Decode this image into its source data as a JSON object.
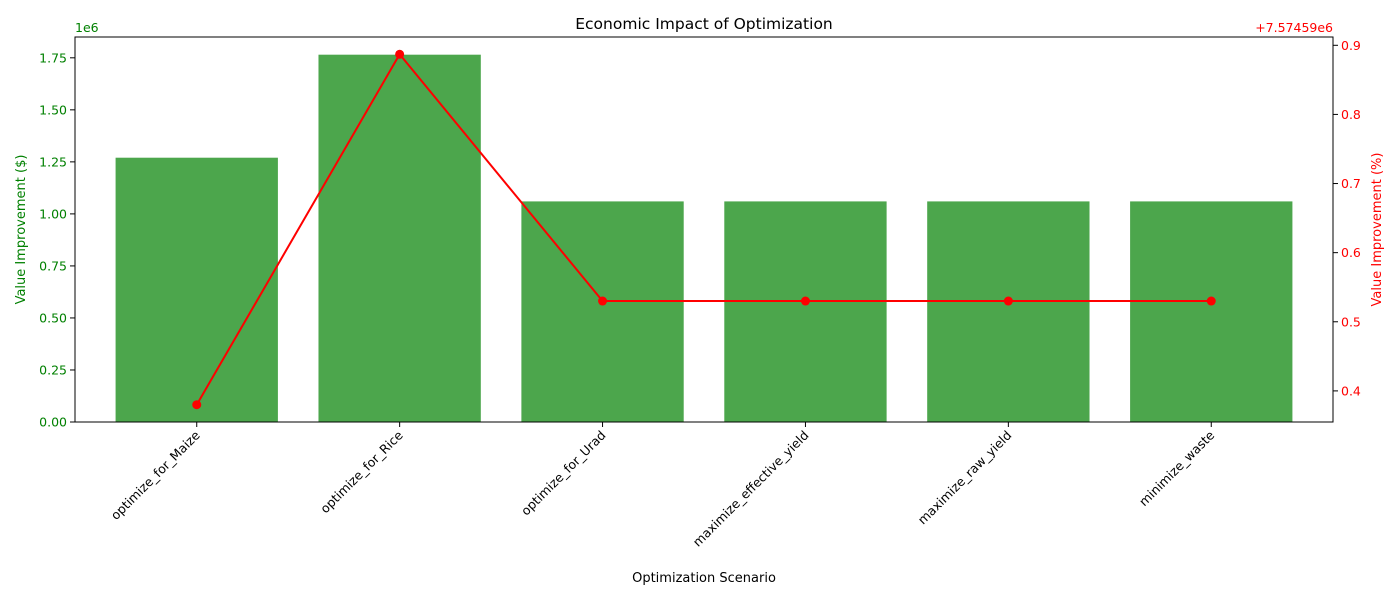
{
  "chart_data": {
    "type": "bar+line",
    "title": "Economic Impact of Optimization",
    "xlabel": "Optimization Scenario",
    "ylabel_left": "Value Improvement ($)",
    "ylabel_right": "Value Improvement (%)",
    "left_scale_label": "1e6",
    "right_offset_label": "+7.57459e6",
    "categories": [
      "optimize_for_Maize",
      "optimize_for_Rice",
      "optimize_for_Urad",
      "maximize_effective_yield",
      "maximize_raw_yield",
      "minimize_waste"
    ],
    "bar_series": {
      "values": [
        1.27,
        1.765,
        1.06,
        1.06,
        1.06,
        1.06
      ],
      "color": "#4ca64c",
      "axis": "left"
    },
    "line_series": {
      "values": [
        0.38,
        0.887,
        0.53,
        0.53,
        0.53,
        0.53
      ],
      "color": "#ff0000",
      "axis": "right"
    },
    "ylim_left": [
      0,
      1.85
    ],
    "ylim_right": [
      0.355,
      0.912
    ],
    "yticks_left": [
      "0.00",
      "0.25",
      "0.50",
      "0.75",
      "1.00",
      "1.25",
      "1.50",
      "1.75"
    ],
    "yticks_right": [
      "0.4",
      "0.5",
      "0.6",
      "0.7",
      "0.8",
      "0.9"
    ],
    "left_axis_color": "#008000",
    "right_axis_color": "#ff0000",
    "grid": false,
    "legend": "none"
  }
}
